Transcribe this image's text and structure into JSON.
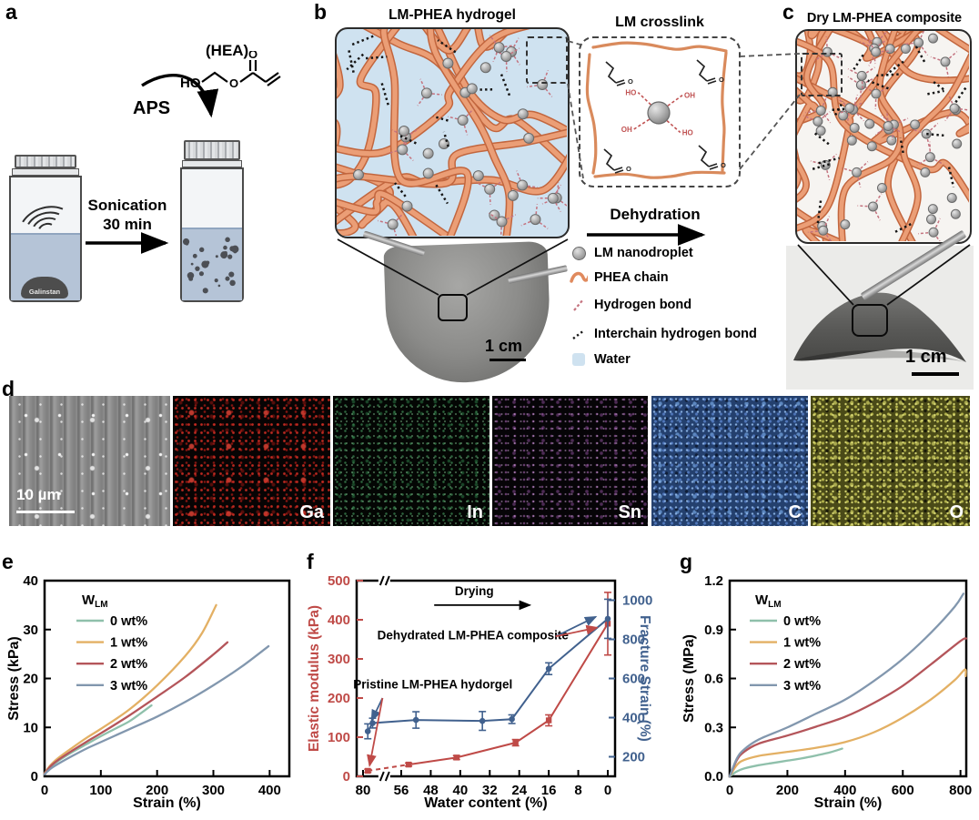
{
  "figure": {
    "panel_labels": {
      "a": "a",
      "b": "b",
      "c": "c",
      "d": "d",
      "e": "e",
      "f": "f",
      "g": "g"
    },
    "panel_a": {
      "hea_title": "(HEA)",
      "ho_label": "HO",
      "ester_o_label": "O",
      "carbonyl_o_label": "O",
      "aps_label": "APS",
      "sonication_line1": "Sonication",
      "sonication_line2": "30 min",
      "vial_blob_label": "Galinstan"
    },
    "panel_b": {
      "title": "LM-PHEA hydrogel",
      "scale_bar": "1 cm"
    },
    "inset": {
      "title": "LM crosslink",
      "hydroxyl_labels": [
        "HO",
        "OH",
        "OH",
        "HO"
      ],
      "carbonyl_label": "O"
    },
    "process": {
      "dehydration": "Dehydration"
    },
    "legend": {
      "items": [
        {
          "icon": "lm-nanodroplet-icon",
          "label": "LM nanodroplet"
        },
        {
          "icon": "phea-chain-icon",
          "label": "PHEA chain"
        },
        {
          "icon": "hydrogen-bond-icon",
          "label": "Hydrogen bond"
        },
        {
          "icon": "interchain-hydrogen-bond-icon",
          "label": "Interchain hydrogen bond"
        },
        {
          "icon": "water-icon",
          "label": "Water"
        }
      ]
    },
    "panel_c": {
      "title": "Dry LM-PHEA composite",
      "scale_bar": "1 cm"
    },
    "panel_d": {
      "scale_bar": "10 µm",
      "element_labels": [
        "Ga",
        "In",
        "Sn",
        "C",
        "O"
      ]
    },
    "colors": {
      "chain_fill": "#eb9e76",
      "chain_outline": "#c2663e",
      "water": "#cfe2f0",
      "dry_bg": "#f6f4f1",
      "hydrogen_bond": "#c4737f",
      "interchain_bond": "#151515",
      "wlm0": "#8fc0ab",
      "wlm1": "#e3b064",
      "wlm2": "#b4555a",
      "wlm3": "#8297ae",
      "modulus_red": "#bf4a47",
      "strain_blue": "#41618e"
    }
  },
  "chart_data": [
    {
      "id": "e",
      "type": "line",
      "xlabel": "Strain (%)",
      "ylabel": "Stress (kPa)",
      "xlim": [
        0,
        435
      ],
      "ylim": [
        0,
        40
      ],
      "xticks": [
        0,
        100,
        200,
        300,
        400
      ],
      "yticks": [
        0,
        10,
        20,
        30,
        40
      ],
      "legend_symbol": "W",
      "legend_sub": "LM",
      "legend_position": "upper-left",
      "grid": false,
      "series": [
        {
          "name": "0 wt%",
          "color": "#8fc0ab",
          "points": [
            [
              0,
              0.5
            ],
            [
              10,
              1.8
            ],
            [
              25,
              3.2
            ],
            [
              50,
              5.0
            ],
            [
              75,
              6.6
            ],
            [
              100,
              8.2
            ],
            [
              125,
              9.7
            ],
            [
              150,
              11.2
            ],
            [
              170,
              12.8
            ],
            [
              190,
              14.5
            ]
          ]
        },
        {
          "name": "1 wt%",
          "color": "#e3b064",
          "points": [
            [
              0,
              0.6
            ],
            [
              10,
              2.2
            ],
            [
              25,
              3.8
            ],
            [
              50,
              5.9
            ],
            [
              75,
              7.9
            ],
            [
              100,
              9.7
            ],
            [
              150,
              13.6
            ],
            [
              200,
              18.6
            ],
            [
              250,
              24.6
            ],
            [
              280,
              29.3
            ],
            [
              305,
              35.0
            ]
          ]
        },
        {
          "name": "2 wt%",
          "color": "#b4555a",
          "points": [
            [
              0,
              0.5
            ],
            [
              10,
              2.0
            ],
            [
              25,
              3.4
            ],
            [
              50,
              5.3
            ],
            [
              75,
              7.1
            ],
            [
              100,
              8.8
            ],
            [
              150,
              12.4
            ],
            [
              200,
              16.3
            ],
            [
              250,
              20.3
            ],
            [
              300,
              24.9
            ],
            [
              325,
              27.4
            ]
          ]
        },
        {
          "name": "3 wt%",
          "color": "#8297ae",
          "points": [
            [
              0,
              0.4
            ],
            [
              10,
              1.5
            ],
            [
              25,
              2.6
            ],
            [
              50,
              4.2
            ],
            [
              75,
              5.7
            ],
            [
              100,
              7.0
            ],
            [
              150,
              9.6
            ],
            [
              200,
              12.2
            ],
            [
              250,
              15.2
            ],
            [
              300,
              18.6
            ],
            [
              350,
              22.4
            ],
            [
              398,
              26.6
            ]
          ]
        }
      ]
    },
    {
      "id": "f",
      "type": "dual-axis-line",
      "xlabel": "Water content (%)",
      "ylabel_left": "Elastic modulus (kPa)",
      "ylabel_right": "Fracture Strain (%)",
      "left_color": "#bf4a47",
      "right_color": "#41618e",
      "xticks": [
        80,
        56,
        48,
        40,
        32,
        24,
        16,
        8,
        0
      ],
      "x_axis_reversed": true,
      "x_axis_broken_between": [
        80,
        56
      ],
      "x_map": {
        "v_hi": 80,
        "v_mid": 56,
        "f_hi": 0.0246,
        "f_mid": 0.1725,
        "f_lo": 0.9718,
        "break_frac": 0.105
      },
      "ylim_left": [
        0,
        500
      ],
      "yticks_left": [
        0,
        100,
        200,
        300,
        400,
        500
      ],
      "ylim_right": [
        100,
        1100
      ],
      "yticks_right": [
        200,
        400,
        600,
        800,
        1000
      ],
      "annotations": [
        {
          "text": "Drying",
          "fx": 0.455,
          "fy": 0.075,
          "color": "#000000",
          "arrows": [
            {
              "x1": 0.3,
              "y1": 0.125,
              "x2": 0.67,
              "y2": 0.125,
              "color": "#000000"
            }
          ]
        },
        {
          "text": "Dehydrated LM-PHEA composite",
          "fx": 0.45,
          "fy": 0.3,
          "color": "#000000",
          "arrows": [
            {
              "x1": 0.77,
              "y1": 0.285,
              "x2": 0.925,
              "y2": 0.185,
              "color": "#41618e"
            },
            {
              "x1": 0.77,
              "y1": 0.285,
              "x2": 0.93,
              "y2": 0.24,
              "color": "#bf4a47"
            }
          ]
        },
        {
          "text": "Pristine LM-PHEA hydorgel",
          "fx": 0.295,
          "fy": 0.55,
          "color": "#000000",
          "arrows": [
            {
              "x1": 0.1,
              "y1": 0.6,
              "x2": 0.058,
              "y2": 0.715,
              "color": "#41618e"
            },
            {
              "x1": 0.1,
              "y1": 0.6,
              "x2": 0.05,
              "y2": 0.945,
              "color": "#bf4a47"
            }
          ]
        }
      ],
      "series": [
        {
          "name": "Elastic modulus",
          "axis": "left",
          "marker": "square",
          "color": "#bf4a47",
          "points": [
            [
              77,
              14
            ],
            [
              54,
              30
            ],
            [
              41,
              48
            ],
            [
              25,
              86
            ],
            [
              16,
              143
            ],
            [
              0,
              390
            ]
          ],
          "errors": [
            4,
            4,
            5,
            8,
            14,
            80
          ],
          "dash_first_segment": true
        },
        {
          "name": "Fracture strain",
          "axis": "right",
          "marker": "circle",
          "color": "#41618e",
          "points": [
            [
              77,
              330
            ],
            [
              74,
              372
            ],
            [
              52,
              388
            ],
            [
              34,
              383
            ],
            [
              26,
              392
            ],
            [
              16,
              650
            ],
            [
              0,
              905
            ]
          ],
          "errors": [
            38,
            25,
            42,
            48,
            22,
            30,
            100
          ]
        }
      ]
    },
    {
      "id": "g",
      "type": "line",
      "xlabel": "Strain (%)",
      "ylabel": "Stress (MPa)",
      "xlim": [
        0,
        820
      ],
      "ylim": [
        0,
        1.2
      ],
      "xticks": [
        0,
        200,
        400,
        600,
        800
      ],
      "yticks": [
        0,
        0.3,
        0.6,
        0.9,
        1.2
      ],
      "ytick_labels": [
        "0.0",
        "0.3",
        "0.6",
        "0.9",
        "1.2"
      ],
      "legend_symbol": "W",
      "legend_sub": "LM",
      "legend_position": "upper-left",
      "grid": false,
      "series": [
        {
          "name": "0 wt%",
          "color": "#8fc0ab",
          "points": [
            [
              0,
              0
            ],
            [
              25,
              0.03
            ],
            [
              50,
              0.048
            ],
            [
              100,
              0.068
            ],
            [
              150,
              0.082
            ],
            [
              200,
              0.096
            ],
            [
              250,
              0.11
            ],
            [
              300,
              0.128
            ],
            [
              350,
              0.148
            ],
            [
              390,
              0.17
            ]
          ]
        },
        {
          "name": "1 wt%",
          "color": "#e3b064",
          "points": [
            [
              0,
              0
            ],
            [
              25,
              0.07
            ],
            [
              50,
              0.1
            ],
            [
              100,
              0.125
            ],
            [
              150,
              0.138
            ],
            [
              200,
              0.15
            ],
            [
              300,
              0.175
            ],
            [
              400,
              0.21
            ],
            [
              500,
              0.27
            ],
            [
              600,
              0.36
            ],
            [
              700,
              0.475
            ],
            [
              780,
              0.59
            ],
            [
              815,
              0.655
            ],
            [
              818,
              0.615
            ]
          ]
        },
        {
          "name": "2 wt%",
          "color": "#b4555a",
          "points": [
            [
              0,
              0
            ],
            [
              25,
              0.1
            ],
            [
              50,
              0.15
            ],
            [
              100,
              0.2
            ],
            [
              200,
              0.25
            ],
            [
              300,
              0.305
            ],
            [
              400,
              0.365
            ],
            [
              500,
              0.45
            ],
            [
              600,
              0.555
            ],
            [
              700,
              0.69
            ],
            [
              800,
              0.83
            ],
            [
              820,
              0.845
            ]
          ]
        },
        {
          "name": "3 wt%",
          "color": "#8297ae",
          "points": [
            [
              0,
              0
            ],
            [
              25,
              0.11
            ],
            [
              50,
              0.165
            ],
            [
              100,
              0.225
            ],
            [
              200,
              0.3
            ],
            [
              300,
              0.385
            ],
            [
              400,
              0.47
            ],
            [
              500,
              0.585
            ],
            [
              600,
              0.72
            ],
            [
              700,
              0.885
            ],
            [
              780,
              1.04
            ],
            [
              810,
              1.12
            ]
          ]
        }
      ]
    }
  ]
}
